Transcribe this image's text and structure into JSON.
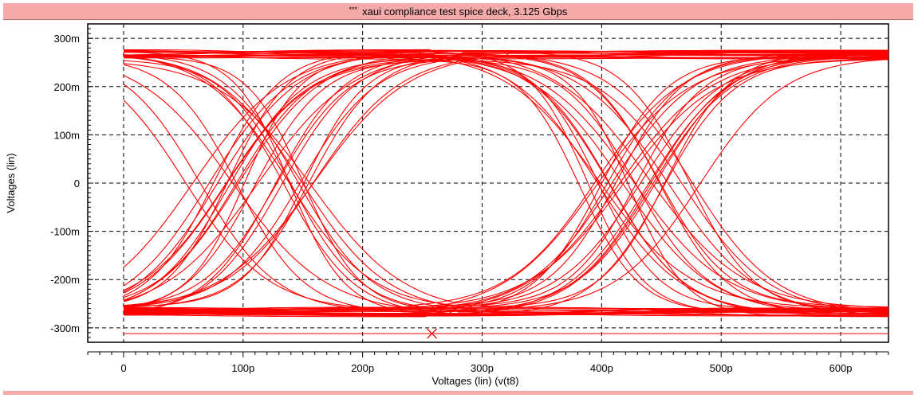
{
  "window": {
    "title_prefix": "***",
    "title": "xaui compliance test spice deck, 3.125 Gbps"
  },
  "chart_data": {
    "type": "line",
    "title": "xaui compliance test spice deck, 3.125 Gbps",
    "xlabel": "Voltages (lin) (v(t8)",
    "ylabel": "Voltages (lin)",
    "xlim": [
      -30,
      640
    ],
    "ylim": [
      -330,
      330
    ],
    "x_ticks": [
      0,
      100,
      200,
      300,
      400,
      500,
      600
    ],
    "x_tick_labels": [
      "0",
      "100p",
      "200p",
      "300p",
      "400p",
      "500p",
      "600p"
    ],
    "y_ticks": [
      300,
      200,
      100,
      0,
      -100,
      -200,
      -300
    ],
    "y_tick_labels": [
      "300m",
      "200m",
      "100m",
      "0",
      "-100m",
      "-200m",
      "-300m"
    ],
    "grid": true,
    "grid_style": "dashed",
    "series_color": "#ff0000",
    "plot_content": "eye-diagram",
    "eye": {
      "unit_interval": 320,
      "levels": [
        265,
        -265
      ],
      "crossings": [
        110,
        430
      ],
      "crossing_spread": 60,
      "trace_count": 70
    },
    "baseline": {
      "y": -312,
      "x_range": [
        0,
        640
      ]
    },
    "marker": {
      "symbol": "x",
      "x": 258,
      "y": -312
    }
  }
}
